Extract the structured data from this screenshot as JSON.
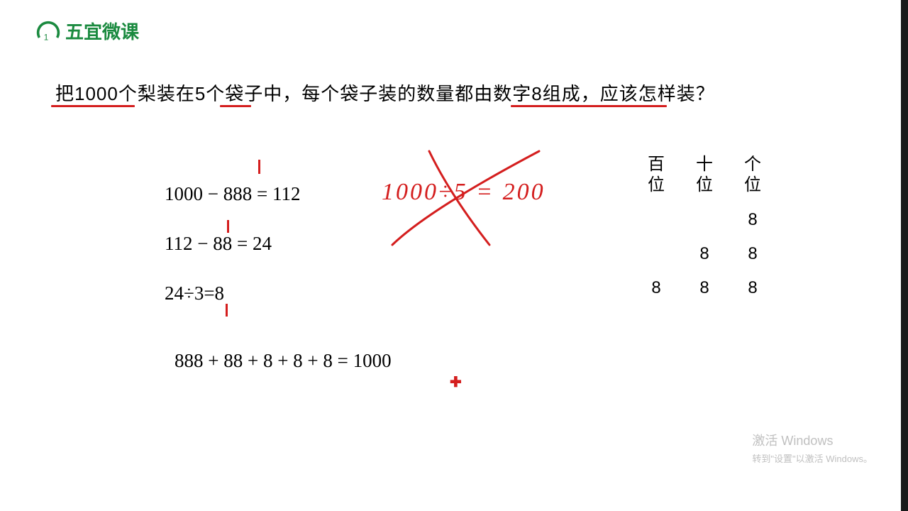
{
  "logo": {
    "text": "五宜微课",
    "color": "#1a8a3f",
    "number": "1"
  },
  "question": {
    "text": "把1000个梨装在5个袋子中，每个袋子装的数量都由数字8组成，应该怎样装？"
  },
  "underlines": {
    "color": "#d41e1e"
  },
  "math": {
    "line1": "1000 − 888 = 112",
    "line2": "112 − 88 = 24",
    "line3": "24÷3=8",
    "line4": "888 +  88 + 8 + 8 + 8 = 1000"
  },
  "handwritten": {
    "text": "1000÷5 = 200",
    "color": "#d41e1e"
  },
  "place_table": {
    "headers": [
      "百位",
      "十位",
      "个位"
    ],
    "rows": [
      [
        "",
        "",
        "8"
      ],
      [
        "",
        "8",
        "8"
      ],
      [
        "8",
        "8",
        "8"
      ]
    ]
  },
  "watermark": {
    "title": "激活 Windows",
    "subtitle": "转到\"设置\"以激活 Windows。"
  },
  "colors": {
    "annotation": "#d41e1e",
    "text": "#000000",
    "background": "#ffffff"
  }
}
